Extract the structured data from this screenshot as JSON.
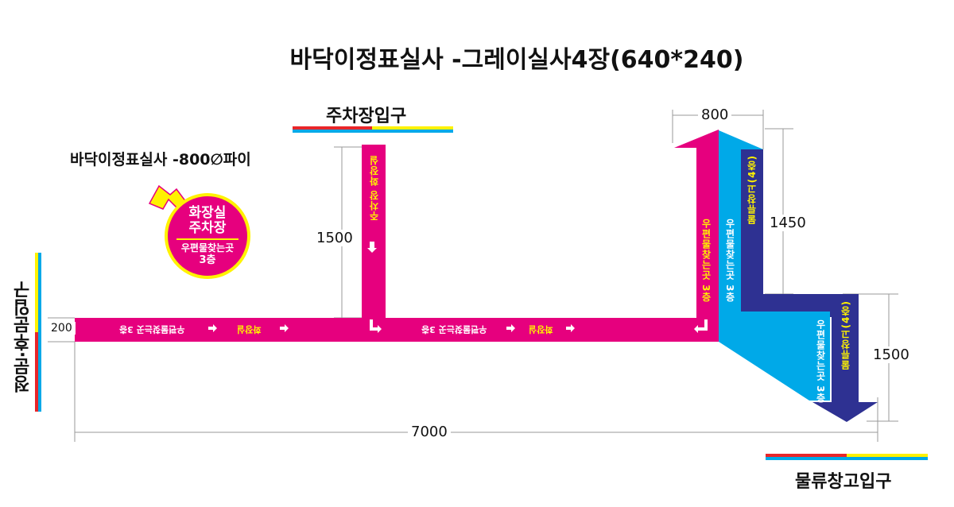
{
  "title": "바닥이정표실사 -그레이실사4장(640*240)",
  "subtitle": "바닥이정표실사 -800∅파이",
  "gates": {
    "parking": "주차장입구",
    "logistics": "물류창고입구",
    "left": "정문·후문입구"
  },
  "badge": {
    "line1": "화장실",
    "line2": "주차장",
    "line3": "우편물찾는곳",
    "line4": "3층"
  },
  "dimensions": {
    "total_width": "7000",
    "bar_height": "200",
    "parking_arm": "1500",
    "top_width": "800",
    "right_tall": "1450",
    "bottom_right": "1500"
  },
  "arrow_texts": {
    "mail_floor": "우편물찾는곳 3층",
    "toilet": "화장실",
    "parking_down": "주차장 화장실",
    "blue_right": "우편물찾는곳 3층",
    "navy_text": "물류창고(4층)",
    "navy_lower": "물류창고(4층)"
  },
  "colors": {
    "magenta": "#e6007e",
    "cyan": "#00a9e8",
    "navy": "#2e3192",
    "yellow": "#fff200",
    "red": "#e8262a"
  }
}
